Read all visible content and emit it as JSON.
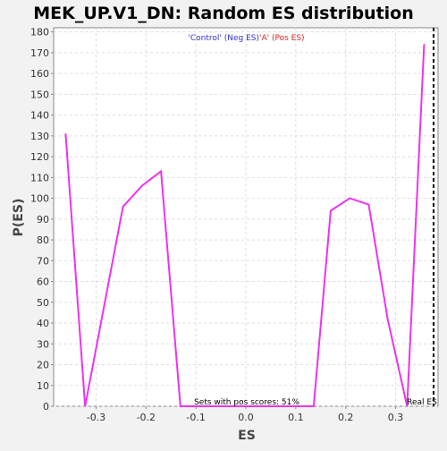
{
  "chart_data": {
    "type": "line",
    "title": "MEK_UP.V1_DN: Random ES distribution",
    "xlabel": "ES",
    "ylabel": "P(ES)",
    "xlim": [
      -0.385,
      0.385
    ],
    "ylim": [
      0,
      182
    ],
    "x_ticks": [
      -0.3,
      -0.2,
      -0.1,
      0.0,
      0.1,
      0.2,
      0.3
    ],
    "x_tick_labels": [
      "-0.3",
      "-0.2",
      "-0.1",
      "0.0",
      "0.1",
      "0.2",
      "0.3"
    ],
    "y_ticks": [
      0,
      10,
      20,
      30,
      40,
      50,
      60,
      70,
      80,
      90,
      100,
      110,
      120,
      130,
      140,
      150,
      160,
      170,
      180
    ],
    "grid": true,
    "legend": {
      "placement": "top-center",
      "entries": [
        {
          "label": "'Control' (Neg ES)",
          "color": "#3333cc"
        },
        {
          "label": "'A' (Pos ES)",
          "color": "#dd2222"
        }
      ]
    },
    "series": [
      {
        "color": "#ee33ee",
        "x": [
          -0.361,
          -0.322,
          -0.284,
          -0.246,
          -0.208,
          -0.17,
          -0.131,
          -0.093,
          -0.055,
          -0.017,
          0.021,
          0.059,
          0.098,
          0.136,
          0.17,
          0.208,
          0.246,
          0.284,
          0.323,
          0.357
        ],
        "y": [
          131,
          0,
          48,
          96,
          106,
          113,
          0,
          0,
          0,
          0,
          0,
          0,
          0,
          0,
          94,
          100,
          97,
          42,
          0,
          174
        ]
      }
    ],
    "annotations": {
      "pos_scores": "Sets with pos scores: 51%",
      "real_es_label": "Real ES",
      "real_es_value": 0.376
    }
  },
  "colors": {
    "background": "#f2f2f2",
    "plot_background": "#ffffff",
    "grid": "#dddddd",
    "series": "#ee33ee",
    "real_es_line": "#000000"
  }
}
